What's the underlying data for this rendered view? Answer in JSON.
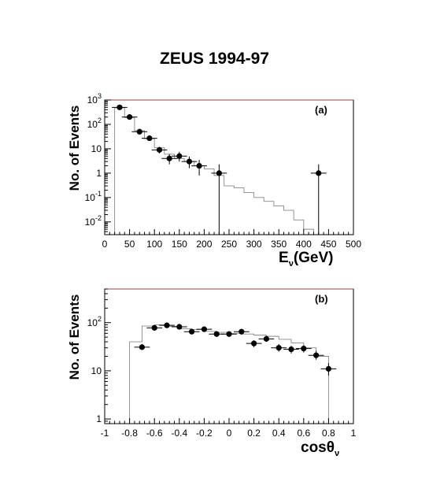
{
  "header": {
    "title": "ZEUS 1994-97"
  },
  "chart_data": [
    {
      "type": "scatter",
      "panel_label": "(a)",
      "xlabel_main": "E",
      "xlabel_sub": "ν",
      "xlabel_unit": "(GeV)",
      "ylabel": "No. of Events",
      "xlim": [
        0,
        500
      ],
      "ylim": [
        0.003,
        1000
      ],
      "yscale": "log",
      "x_ticks": [
        0,
        50,
        100,
        150,
        200,
        250,
        300,
        350,
        400,
        450,
        500
      ],
      "y_ticks": [
        {
          "value": 0.01,
          "base": "10",
          "exp": "-2"
        },
        {
          "value": 0.1,
          "base": "10",
          "exp": "-1"
        },
        {
          "value": 1,
          "base": "1",
          "exp": ""
        },
        {
          "value": 10,
          "base": "10",
          "exp": ""
        },
        {
          "value": 100,
          "base": "10",
          "exp": "2"
        },
        {
          "value": 1000,
          "base": "10",
          "exp": "3"
        }
      ],
      "points": [
        {
          "x": 30,
          "y": 500,
          "lo": 460,
          "hi": 545
        },
        {
          "x": 50,
          "y": 200,
          "lo": 175,
          "hi": 228
        },
        {
          "x": 70,
          "y": 50,
          "lo": 43,
          "hi": 58
        },
        {
          "x": 90,
          "y": 27,
          "lo": 22,
          "hi": 33
        },
        {
          "x": 110,
          "y": 9,
          "lo": 6.5,
          "hi": 12
        },
        {
          "x": 130,
          "y": 4,
          "lo": 2.3,
          "hi": 6
        },
        {
          "x": 150,
          "y": 5,
          "lo": 3,
          "hi": 7.5
        },
        {
          "x": 170,
          "y": 3,
          "lo": 1.6,
          "hi": 4.8
        },
        {
          "x": 190,
          "y": 2,
          "lo": 0.8,
          "hi": 3.5
        },
        {
          "x": 230,
          "y": 1,
          "lo": 0.003,
          "hi": 2.3
        },
        {
          "x": 430,
          "y": 1,
          "lo": 0.003,
          "hi": 2.3
        }
      ],
      "mc_histogram": {
        "edges": [
          20,
          40,
          60,
          80,
          100,
          120,
          140,
          160,
          180,
          200,
          220,
          240,
          260,
          280,
          300,
          320,
          340,
          360,
          380,
          400,
          420
        ],
        "values": [
          480,
          190,
          55,
          26,
          11,
          6,
          4,
          3,
          2,
          1.5,
          0.8,
          0.3,
          0.25,
          0.16,
          0.1,
          0.07,
          0.045,
          0.03,
          0.012,
          0.005
        ]
      }
    },
    {
      "type": "scatter",
      "panel_label": "(b)",
      "xlabel_main": "cosθ",
      "xlabel_sub": "ν",
      "ylabel": "No. of Events",
      "xlim": [
        -1,
        1
      ],
      "ylim": [
        0.8,
        500
      ],
      "yscale": "log",
      "x_ticks": [
        -1,
        -0.8,
        -0.6,
        -0.4,
        -0.2,
        0,
        0.2,
        0.4,
        0.6,
        0.8,
        1
      ],
      "y_ticks": [
        {
          "value": 1,
          "base": "1",
          "exp": ""
        },
        {
          "value": 10,
          "base": "10",
          "exp": ""
        },
        {
          "value": 100,
          "base": "10",
          "exp": "2"
        }
      ],
      "points": [
        {
          "x": -0.7,
          "y": 31,
          "lo": 27,
          "hi": 36
        },
        {
          "x": -0.6,
          "y": 78,
          "lo": 70,
          "hi": 87
        },
        {
          "x": -0.5,
          "y": 88,
          "lo": 79,
          "hi": 98
        },
        {
          "x": -0.4,
          "y": 82,
          "lo": 73,
          "hi": 91
        },
        {
          "x": -0.3,
          "y": 65,
          "lo": 57,
          "hi": 73
        },
        {
          "x": -0.2,
          "y": 73,
          "lo": 65,
          "hi": 82
        },
        {
          "x": -0.1,
          "y": 58,
          "lo": 51,
          "hi": 66
        },
        {
          "x": 0.0,
          "y": 58,
          "lo": 51,
          "hi": 66
        },
        {
          "x": 0.1,
          "y": 65,
          "lo": 57,
          "hi": 73
        },
        {
          "x": 0.2,
          "y": 37,
          "lo": 31,
          "hi": 43
        },
        {
          "x": 0.3,
          "y": 46,
          "lo": 40,
          "hi": 53
        },
        {
          "x": 0.4,
          "y": 30,
          "lo": 25,
          "hi": 36
        },
        {
          "x": 0.5,
          "y": 28,
          "lo": 23,
          "hi": 33
        },
        {
          "x": 0.6,
          "y": 29,
          "lo": 24,
          "hi": 34
        },
        {
          "x": 0.7,
          "y": 21,
          "lo": 17,
          "hi": 26
        },
        {
          "x": 0.8,
          "y": 11,
          "lo": 8,
          "hi": 14.5
        }
      ],
      "mc_histogram": {
        "edges": [
          -0.8,
          -0.7,
          -0.6,
          -0.5,
          -0.4,
          -0.3,
          -0.2,
          -0.1,
          0.0,
          0.1,
          0.2,
          0.3,
          0.4,
          0.5,
          0.6,
          0.7,
          0.8
        ],
        "values": [
          40,
          85,
          90,
          84,
          75,
          72,
          66,
          63,
          60,
          58,
          55,
          52,
          45,
          38,
          30,
          20
        ],
        "start_from_floor": true
      }
    }
  ]
}
